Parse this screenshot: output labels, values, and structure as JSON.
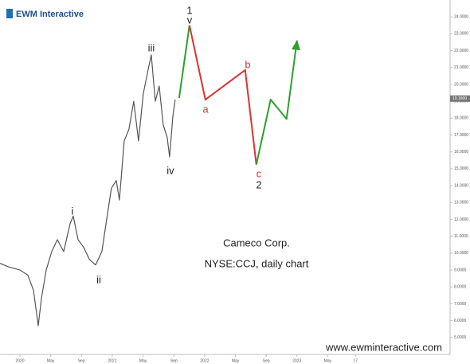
{
  "chart_data": {
    "type": "line",
    "logo": "EWM Interactive",
    "annotations": [
      "Cameco Corp.",
      "NYSE:CCJ, daily chart"
    ],
    "watermark": "www.ewminteractive.com",
    "wave_labels": [
      "1",
      "v",
      "iii",
      "i",
      "ii",
      "iv",
      "a",
      "b",
      "c",
      "2"
    ],
    "last_price": {
      "value": 19.16,
      "label": "19.1600"
    },
    "xlim": [
      -2.59,
      55.9
    ],
    "xticks": [
      {
        "value": 0,
        "label": "2020"
      },
      {
        "value": 4,
        "label": "May"
      },
      {
        "value": 8,
        "label": "Sep"
      },
      {
        "value": 12,
        "label": "2021"
      },
      {
        "value": 16,
        "label": "May"
      },
      {
        "value": 20,
        "label": "Sep"
      },
      {
        "value": 24,
        "label": "2022"
      },
      {
        "value": 28,
        "label": "May"
      },
      {
        "value": 32,
        "label": "Sep"
      },
      {
        "value": 36,
        "label": "2023"
      },
      {
        "value": 40,
        "label": "May"
      },
      {
        "value": 43.6,
        "label": "17"
      }
    ],
    "ylim": [
      4.0,
      25.0
    ],
    "yticks": [
      {
        "value": 5,
        "label": "5.0000"
      },
      {
        "value": 6,
        "label": "6.0000"
      },
      {
        "value": 7,
        "label": "7.0000"
      },
      {
        "value": 8,
        "label": "8.0000"
      },
      {
        "value": 9,
        "label": "9.0000"
      },
      {
        "value": 10,
        "label": "10.0000"
      },
      {
        "value": 11,
        "label": "11.0000"
      },
      {
        "value": 12,
        "label": "12.0000"
      },
      {
        "value": 13,
        "label": "13.0000"
      },
      {
        "value": 14,
        "label": "14.0000"
      },
      {
        "value": 15,
        "label": "15.0000"
      },
      {
        "value": 16,
        "label": "16.0000"
      },
      {
        "value": 17,
        "label": "17.0000"
      },
      {
        "value": 18,
        "label": "18.0000"
      },
      {
        "value": 19,
        "label": "19.0000"
      },
      {
        "value": 20,
        "label": "20.0000"
      },
      {
        "value": 21,
        "label": "21.0000"
      },
      {
        "value": 22,
        "label": "22.0000"
      },
      {
        "value": 23,
        "label": "23.0000"
      },
      {
        "value": 24,
        "label": "24.0000"
      }
    ],
    "grid": false,
    "series": [
      {
        "color": "#555555",
        "x": [
          -2.59,
          -1.55,
          0,
          1.03,
          1.76,
          2.38,
          2.79,
          3.41,
          4.14,
          4.86,
          5.69,
          6.52,
          6.93,
          7.55,
          8.28,
          9.0,
          9.83,
          10.65,
          11.27,
          11.89,
          12.52,
          12.93,
          13.55,
          14.17,
          14.79,
          15.41,
          16.03,
          16.65,
          17.07,
          17.59,
          18.1,
          18.62,
          19.14,
          19.45,
          19.86,
          20.17
        ],
        "values": [
          9.4,
          9.2,
          9.0,
          8.7,
          7.8,
          5.7,
          7.3,
          9.0,
          10.1,
          10.8,
          10.1,
          11.75,
          12.2,
          10.8,
          10.35,
          9.65,
          9.3,
          10.1,
          12.0,
          13.85,
          14.3,
          13.15,
          16.65,
          17.35,
          19.0,
          16.65,
          19.45,
          20.85,
          21.75,
          19.0,
          19.9,
          17.6,
          16.85,
          15.7,
          18.05,
          19.1
        ]
      },
      {
        "color": "#2ca02c",
        "x": [
          20.69,
          22.03
        ],
        "values": [
          19.2,
          23.5
        ]
      },
      {
        "color": "#e03030",
        "x": [
          22.03,
          24.1,
          29.27,
          30.72
        ],
        "values": [
          23.5,
          19.1,
          20.85,
          15.25
        ]
      },
      {
        "color": "#2ca02c",
        "x": [
          30.72,
          32.58,
          34.65,
          36.0
        ],
        "values": [
          15.25,
          19.1,
          17.95,
          22.6
        ]
      }
    ]
  }
}
